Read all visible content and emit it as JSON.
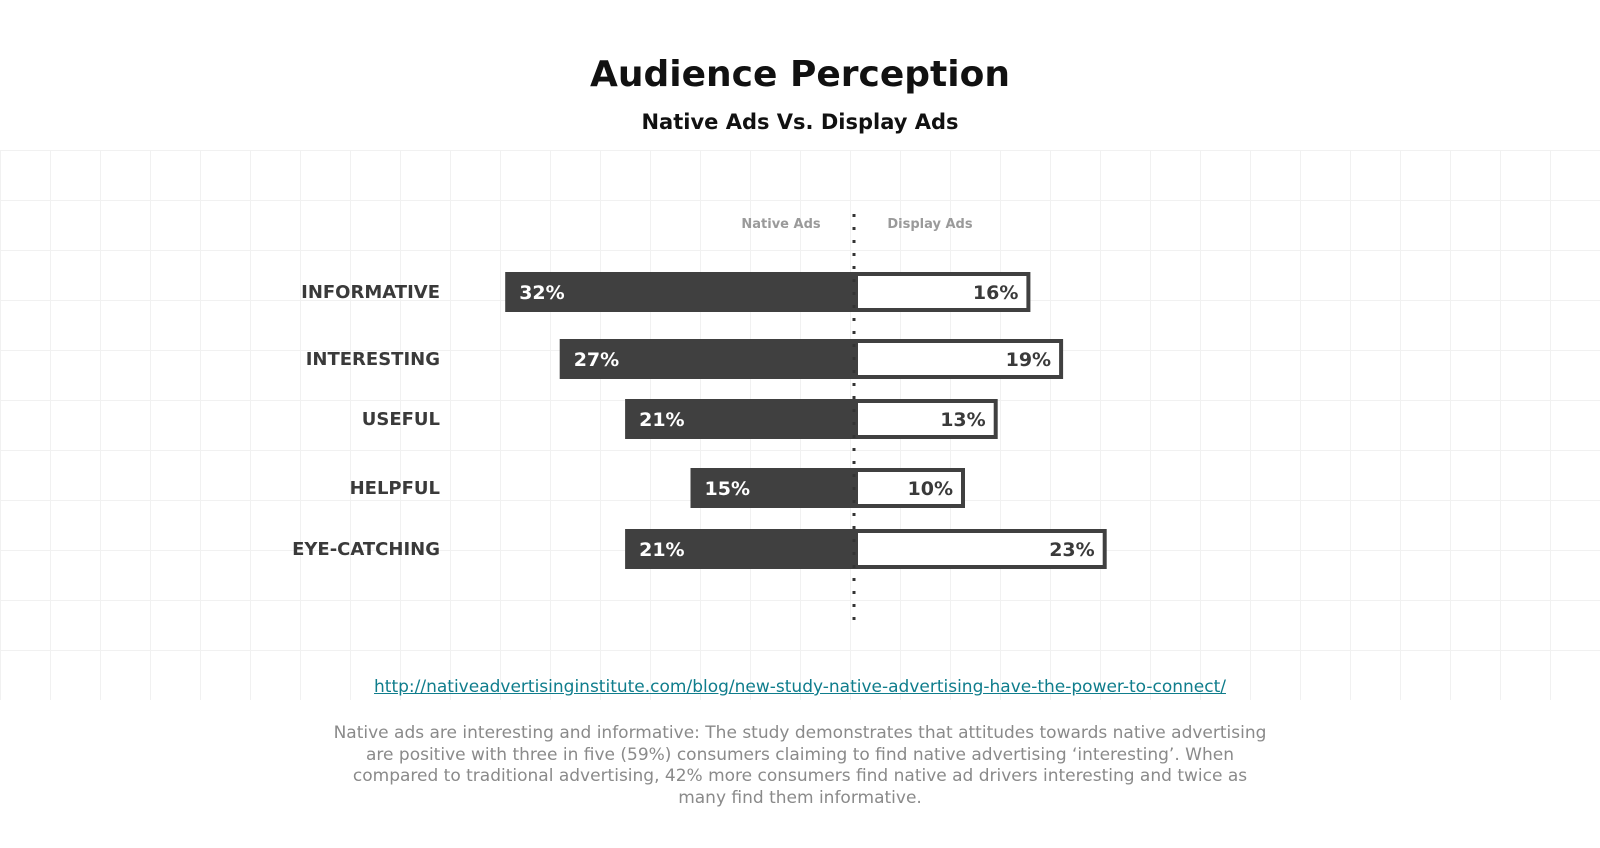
{
  "page": {
    "title": "Audience Perception",
    "subtitle": "Native Ads Vs. Display Ads",
    "source_link": "http://nativeadvertisinginstitute.com/blog/new-study-native-advertising-have-the-power-to-connect/",
    "description": "Native ads are interesting and informative: The study demonstrates that attitudes towards native advertising are positive with three in five (59%) consumers claiming to find native advertising ‘interesting’. When compared to traditional advertising, 42% more consumers find native ad drivers interesting and twice as many find them informative."
  },
  "colors": {
    "native": "#404040",
    "display_fill": "#ffffff",
    "display_border": "#404040",
    "link": "#0f7d8c",
    "description_text": "#8a8a8a"
  },
  "chart_data": {
    "type": "bar",
    "orientation": "diverging-horizontal",
    "title": "Audience Perception",
    "subtitle": "Native Ads Vs. Display Ads",
    "categories": [
      "INFORMATIVE",
      "INTERESTING",
      "USEFUL",
      "HELPFUL",
      "EYE-CATCHING"
    ],
    "series": [
      {
        "name": "Native Ads",
        "values": [
          32,
          27,
          21,
          15,
          21
        ],
        "unit": "%"
      },
      {
        "name": "Display Ads",
        "values": [
          16,
          19,
          13,
          10,
          23
        ],
        "unit": "%"
      }
    ],
    "value_labels": {
      "native": [
        "32%",
        "27%",
        "21%",
        "15%",
        "21%"
      ],
      "display": [
        "16%",
        "19%",
        "13%",
        "10%",
        "23%"
      ]
    },
    "grid": true,
    "center_divider": "dotted"
  }
}
